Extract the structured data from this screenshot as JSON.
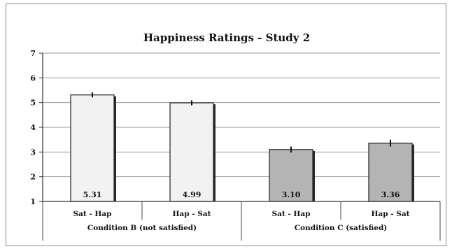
{
  "chart_data": {
    "type": "bar",
    "title": "Happiness Ratings - Study 2",
    "xlabel": "",
    "ylabel": "",
    "ylim": [
      1,
      7
    ],
    "yticks": [
      1,
      2,
      3,
      4,
      5,
      6,
      7
    ],
    "grid": true,
    "categories": [
      "Sat - Hap",
      "Hap - Sat",
      "Sat - Hap",
      "Hap - Sat"
    ],
    "values": [
      5.31,
      4.99,
      3.1,
      3.36
    ],
    "value_labels": [
      "5.31",
      "4.99",
      "3.10",
      "3.36"
    ],
    "error": [
      0.1,
      0.1,
      0.12,
      0.14
    ],
    "bar_colors": [
      "#f2f2f2",
      "#f2f2f2",
      "#b4b4b4",
      "#b4b4b4"
    ],
    "groups": [
      {
        "label": "Condition  B (not satisfied)",
        "categories": [
          0,
          1
        ]
      },
      {
        "label": "Condition  C (satisfied)",
        "categories": [
          2,
          3
        ]
      }
    ]
  }
}
